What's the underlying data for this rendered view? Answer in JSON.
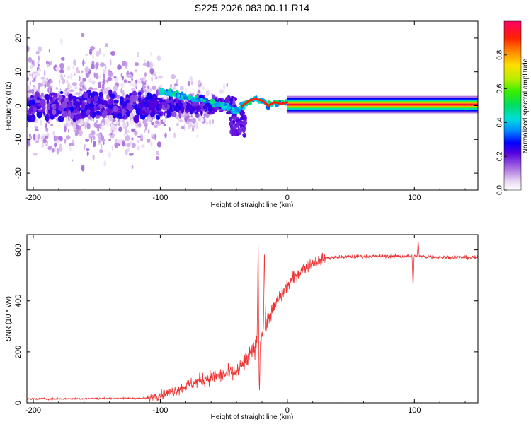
{
  "title": "S225.2026.083.00.11.R14",
  "chart_data": [
    {
      "type": "heatmap",
      "title": "S225.2026.083.00.11.R14",
      "xlabel": "Height of straight line (km)",
      "ylabel": "Frequency (Hz)",
      "xlim": [
        -205,
        150
      ],
      "ylim": [
        -25,
        25
      ],
      "xticks": [
        -200,
        -100,
        0,
        100
      ],
      "xtick_labels": [
        "-200",
        "-100",
        "0",
        "100"
      ],
      "yticks": [
        -20,
        -10,
        0,
        10,
        20
      ],
      "ytick_labels": [
        "-20",
        "-10",
        "0",
        "10",
        "20"
      ],
      "colorbar": {
        "label": "Normalized spectral amplitude",
        "range": [
          0,
          1
        ],
        "ticks": [
          0,
          0.2,
          0.4,
          0.6,
          0.8
        ],
        "tick_labels": [
          "0.0",
          "0.2",
          "0.4",
          "0.6",
          "0.8"
        ],
        "colormap": "rainbow"
      },
      "ridge": {
        "x": [
          -100,
          -90,
          -80,
          -70,
          -60,
          -50,
          -40,
          -35,
          -30,
          -25,
          -20,
          -15,
          -10,
          -5,
          0,
          5,
          10,
          15,
          50,
          100,
          150
        ],
        "freq_hz": [
          4.5,
          3.5,
          2.5,
          1.5,
          1.0,
          0,
          -1.5,
          0,
          1.5,
          2.0,
          1.5,
          0,
          1.0,
          0.5,
          1.0,
          0.8,
          0.5,
          0.3,
          0.3,
          0.3,
          0.3
        ],
        "peak_amplitude_after_x0": 1.0
      }
    },
    {
      "type": "line",
      "xlabel": "Height of straight line (km)",
      "ylabel": "SNR (10 * v/v)",
      "xlim": [
        -205,
        150
      ],
      "ylim": [
        0,
        660
      ],
      "xticks": [
        -200,
        -100,
        0,
        100
      ],
      "xtick_labels": [
        "-200",
        "-100",
        "0",
        "100"
      ],
      "yticks": [
        0,
        200,
        400,
        600
      ],
      "ytick_labels": [
        "0",
        "200",
        "400",
        "600"
      ],
      "series": [
        {
          "name": "SNR",
          "color": "#ee3333",
          "trend_x": [
            -205,
            -110,
            -100,
            -90,
            -80,
            -70,
            -60,
            -50,
            -40,
            -35,
            -30,
            -25,
            -20,
            -15,
            -10,
            -5,
            0,
            5,
            10,
            15,
            20,
            25,
            30,
            40,
            60,
            80,
            100,
            120,
            150
          ],
          "trend_y": [
            15,
            18,
            30,
            45,
            65,
            85,
            100,
            110,
            120,
            150,
            180,
            220,
            270,
            330,
            380,
            420,
            460,
            490,
            515,
            535,
            550,
            560,
            568,
            572,
            575,
            575,
            575,
            572,
            570
          ],
          "spikes": [
            {
              "x": -23,
              "y": 650
            },
            {
              "x": -22,
              "y": 30
            },
            {
              "x": -18,
              "y": 630
            },
            {
              "x": 99,
              "y": 450
            },
            {
              "x": 103,
              "y": 640
            }
          ]
        }
      ]
    }
  ]
}
